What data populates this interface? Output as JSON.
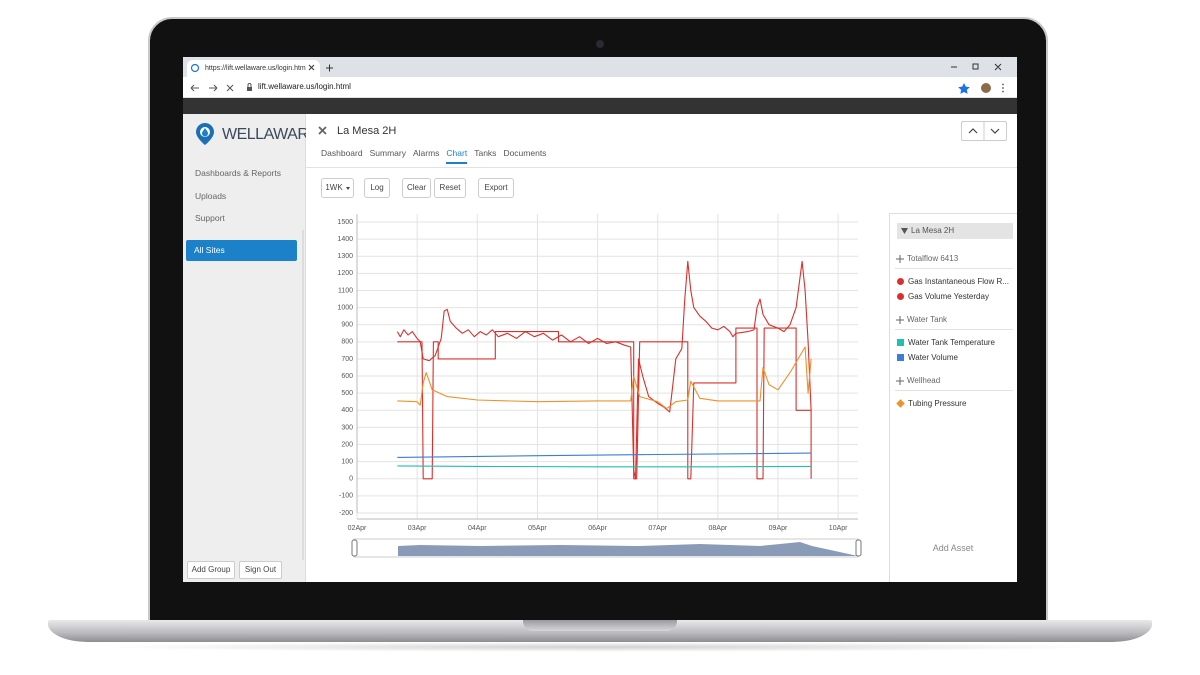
{
  "browser": {
    "tab_title": "https://lift.wellaware.us/login.htm",
    "url": "lift.wellaware.us/login.html"
  },
  "sidebar": {
    "logo": "WELLAWARE",
    "nav": [
      "Dashboards & Reports",
      "Uploads",
      "Support"
    ],
    "active": "All Sites",
    "buttons": [
      "Add Group",
      "Sign Out"
    ]
  },
  "app": {
    "title": "La Mesa 2H",
    "tabs": [
      "Dashboard",
      "Summary",
      "Alarms",
      "Chart",
      "Tanks",
      "Documents"
    ],
    "active_tab": 3,
    "toolbar": [
      "1WK",
      "Log",
      "Clear",
      "Reset",
      "Export"
    ],
    "add_asset": "Add Asset"
  },
  "chart_data": {
    "type": "line",
    "legend_title": "La Mesa 2H",
    "xlim": [
      2,
      10.33
    ],
    "xticks": [
      {
        "value": 2,
        "label": "02Apr"
      },
      {
        "value": 3,
        "label": "03Apr"
      },
      {
        "value": 4,
        "label": "04Apr"
      },
      {
        "value": 5,
        "label": "05Apr"
      },
      {
        "value": 6,
        "label": "06Apr"
      },
      {
        "value": 7,
        "label": "07Apr"
      },
      {
        "value": 8,
        "label": "08Apr"
      },
      {
        "value": 9,
        "label": "09Apr"
      },
      {
        "value": 10,
        "label": "10Apr"
      }
    ],
    "ylim": [
      -200,
      1500
    ],
    "yticks": [
      -200,
      -100,
      0,
      100,
      200,
      300,
      400,
      500,
      600,
      700,
      800,
      900,
      1000,
      1100,
      1200,
      1300,
      1400,
      1500
    ],
    "grid": true,
    "series": [
      {
        "name": "Gas Instantaneous Flow R...",
        "group": "Totalflow 6413",
        "color": "#d9302c",
        "marker": "circle",
        "x": [
          2.67,
          2.72,
          2.78,
          2.85,
          2.92,
          3.0,
          3.05,
          3.1,
          3.2,
          3.3,
          3.4,
          3.45,
          3.5,
          3.55,
          3.65,
          3.75,
          3.85,
          3.95,
          4.05,
          4.15,
          4.25,
          4.35,
          4.5,
          4.65,
          4.8,
          4.95,
          5.1,
          5.25,
          5.4,
          5.55,
          5.7,
          5.85,
          6.0,
          6.15,
          6.3,
          6.45,
          6.55,
          6.6,
          6.63,
          6.68,
          6.75,
          6.85,
          7.0,
          7.1,
          7.2,
          7.3,
          7.4,
          7.45,
          7.5,
          7.55,
          7.6,
          7.7,
          7.8,
          7.9,
          8.0,
          8.1,
          8.2,
          8.25,
          8.3,
          8.5,
          8.6,
          8.65,
          8.7,
          8.75,
          8.85,
          9.0,
          9.1,
          9.2,
          9.3,
          9.4,
          9.45,
          9.5,
          9.55
        ],
        "values": [
          860,
          830,
          870,
          840,
          860,
          820,
          800,
          700,
          690,
          720,
          820,
          980,
          990,
          920,
          880,
          850,
          870,
          830,
          860,
          840,
          870,
          830,
          850,
          820,
          860,
          830,
          850,
          810,
          840,
          800,
          830,
          790,
          820,
          790,
          800,
          780,
          770,
          50,
          0,
          700,
          600,
          480,
          440,
          420,
          390,
          700,
          760,
          1050,
          1270,
          1100,
          1000,
          950,
          920,
          880,
          870,
          890,
          860,
          830,
          850,
          860,
          870,
          1000,
          1050,
          960,
          900,
          880,
          860,
          900,
          1000,
          1270,
          1100,
          800,
          400
        ]
      },
      {
        "name": "Gas Volume Yesterday",
        "group": "Totalflow 6413",
        "color": "#d9302c",
        "marker": "circle",
        "x": [
          2.67,
          3.08,
          3.1,
          3.25,
          3.27,
          3.35,
          3.35,
          4.3,
          4.3,
          5.35,
          5.35,
          6.6,
          6.6,
          6.65,
          6.7,
          7.5,
          7.5,
          7.55,
          7.6,
          8.3,
          8.3,
          8.65,
          8.65,
          8.75,
          8.77,
          9.3,
          9.3,
          9.55,
          9.55
        ],
        "values": [
          800,
          800,
          0,
          0,
          800,
          800,
          700,
          700,
          860,
          860,
          800,
          800,
          0,
          0,
          800,
          800,
          0,
          0,
          560,
          560,
          880,
          880,
          0,
          0,
          880,
          880,
          400,
          400,
          0
        ]
      },
      {
        "name": "Water Tank Temperature",
        "group": "Water Tank",
        "color": "#1fc0b0",
        "marker": "square",
        "x": [
          2.67,
          4,
          6,
          8,
          9.55
        ],
        "values": [
          75,
          72,
          70,
          70,
          72
        ]
      },
      {
        "name": "Water Volume",
        "group": "Water Tank",
        "color": "#3a7fd5",
        "marker": "square",
        "x": [
          2.67,
          5,
          7,
          9.55
        ],
        "values": [
          125,
          135,
          142,
          150
        ]
      },
      {
        "name": "Tubing Pressure",
        "group": "Wellhead",
        "color": "#f0902a",
        "marker": "diamond",
        "x": [
          2.67,
          3.0,
          3.05,
          3.1,
          3.15,
          3.25,
          3.5,
          4.0,
          5.0,
          6.0,
          6.55,
          6.6,
          6.7,
          7.0,
          7.15,
          7.3,
          7.5,
          7.55,
          7.7,
          8.0,
          8.7,
          8.75,
          8.85,
          9.0,
          9.2,
          9.45,
          9.5,
          9.55
        ],
        "values": [
          455,
          450,
          430,
          560,
          620,
          520,
          480,
          460,
          450,
          455,
          455,
          600,
          480,
          450,
          410,
          450,
          460,
          570,
          470,
          455,
          455,
          650,
          550,
          520,
          620,
          770,
          500,
          700
        ]
      }
    ]
  }
}
